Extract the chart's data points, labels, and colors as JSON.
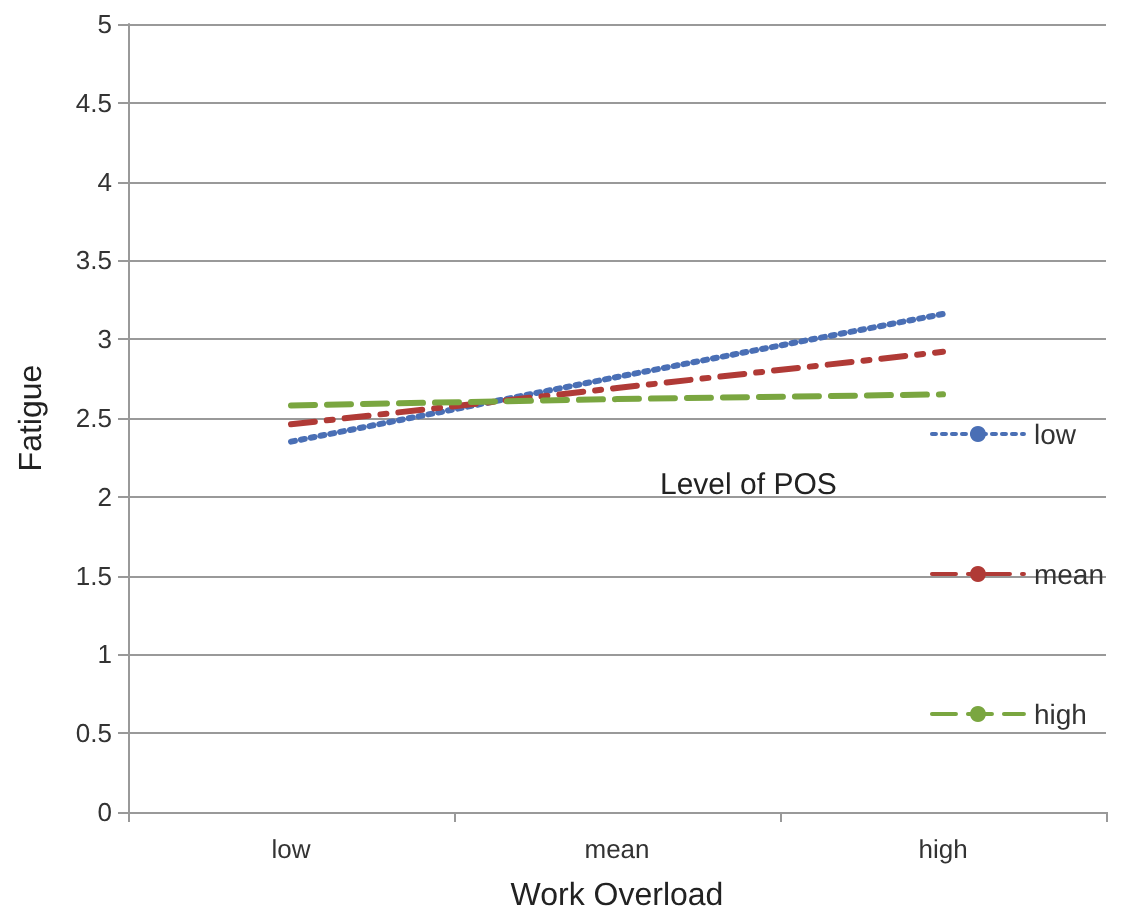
{
  "chart_data": {
    "type": "line",
    "xlabel": "Work Overload",
    "ylabel": "Fatigue",
    "legend_title": "Level of POS",
    "categories": [
      "low",
      "mean",
      "high"
    ],
    "series": [
      {
        "name": "low",
        "color": "#4a6fb5",
        "values": [
          2.35,
          2.76,
          3.16
        ],
        "line_style": "dotted"
      },
      {
        "name": "mean",
        "color": "#b03a36",
        "values": [
          2.46,
          2.69,
          2.92
        ],
        "line_style": "dashdot"
      },
      {
        "name": "high",
        "color": "#7aa640",
        "values": [
          2.58,
          2.62,
          2.65
        ],
        "line_style": "dashed"
      }
    ],
    "ylim": [
      0,
      5
    ],
    "yticks": [
      0,
      0.5,
      1,
      1.5,
      2,
      2.5,
      3,
      3.5,
      4,
      4.5,
      5
    ],
    "grid": "y",
    "legend": "right",
    "marker": "none"
  }
}
